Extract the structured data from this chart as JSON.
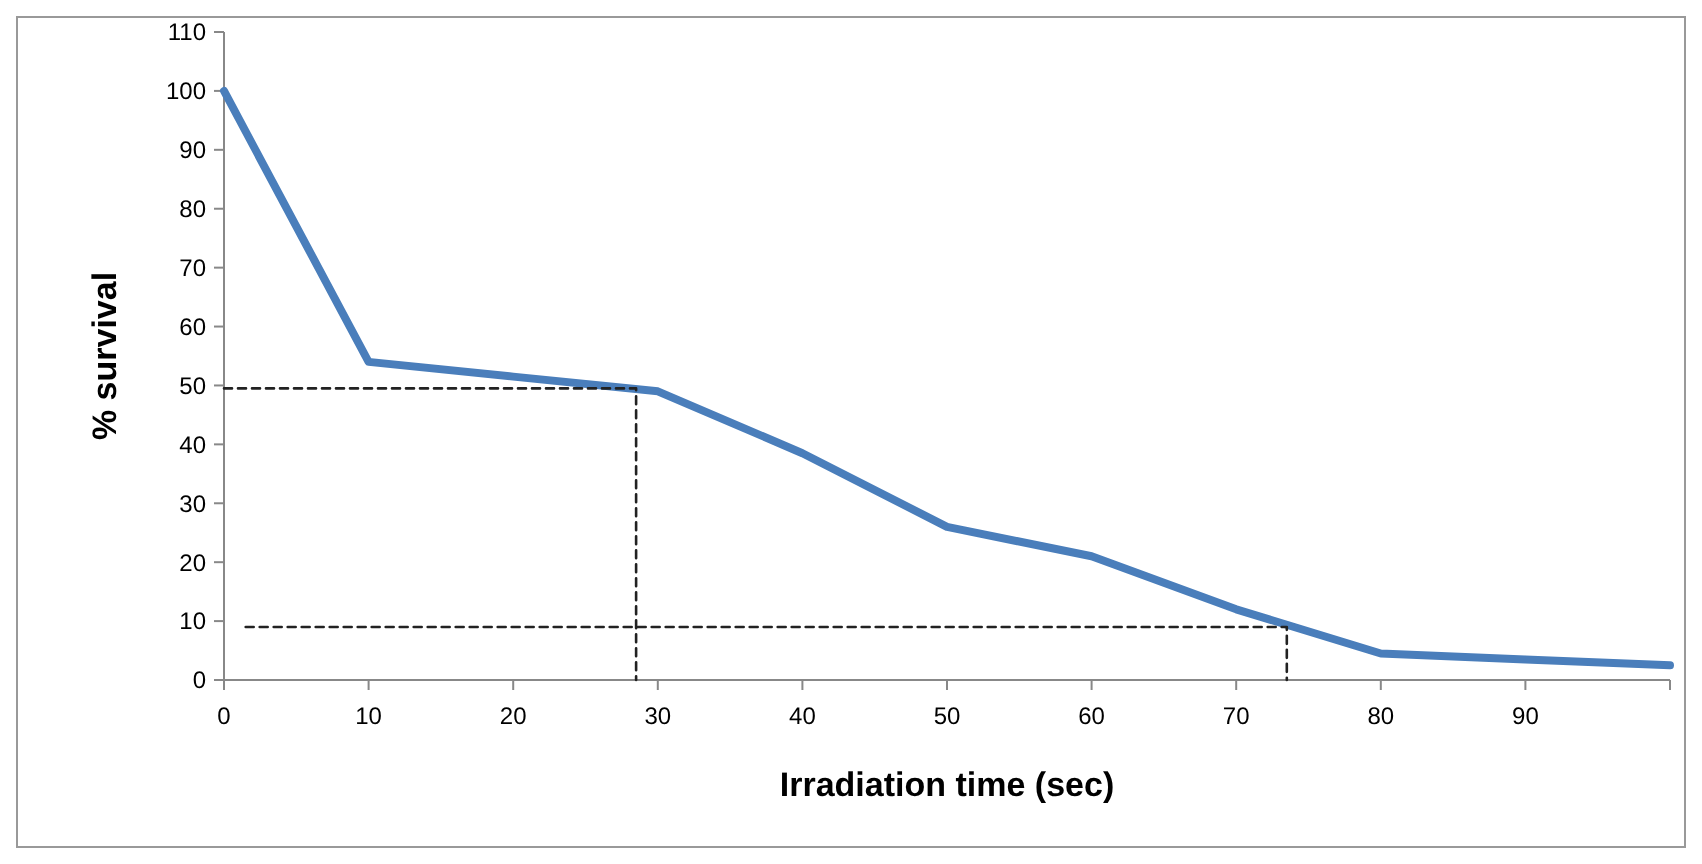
{
  "chart_data": {
    "type": "line",
    "xlabel": "Irradiation time  (sec)",
    "ylabel": "% survival",
    "xlim": [
      0,
      100
    ],
    "xticks": [
      0,
      10,
      20,
      30,
      40,
      50,
      60,
      70,
      80,
      90,
      {
        "value": 100,
        "label": null
      }
    ],
    "ylim": [
      0,
      110
    ],
    "yticks": [
      0,
      10,
      20,
      30,
      40,
      50,
      60,
      70,
      80,
      90,
      100,
      110
    ],
    "grid": false,
    "marker": "none",
    "series": [
      {
        "color": "#4a7ebb",
        "x": [
          0,
          10,
          20,
          30,
          40,
          50,
          60,
          70,
          80,
          90,
          100
        ],
        "values": [
          100,
          54,
          51.5,
          49,
          38.5,
          26,
          21,
          12,
          4.5,
          3.5,
          2.5
        ],
        "line_style": "solid"
      },
      {
        "color": "#222222",
        "x": [
          0,
          28.5,
          28.5
        ],
        "values": [
          49.5,
          49.5,
          0
        ],
        "line_style": "dashed"
      },
      {
        "color": "#222222",
        "x": [
          1.5,
          73.5,
          73.5
        ],
        "values": [
          9,
          9,
          0
        ],
        "line_style": "dashed"
      }
    ]
  }
}
